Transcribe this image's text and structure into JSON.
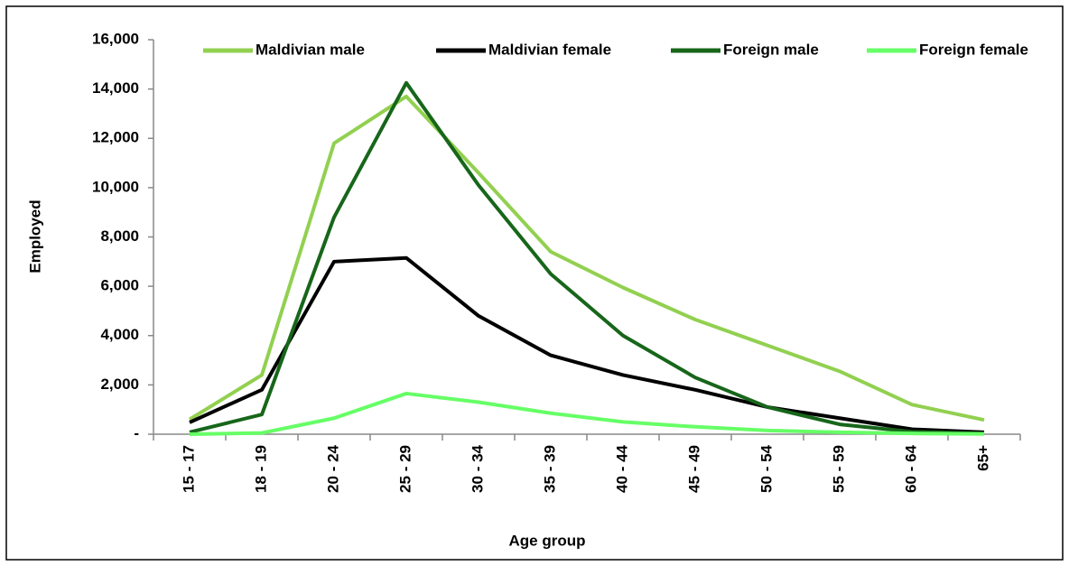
{
  "chart_data": {
    "type": "line",
    "x_label": "Age group",
    "y_label": "Employed",
    "categories": [
      "15 - 17",
      "18 - 19",
      "20 - 24",
      "25 - 29",
      "30 - 34",
      "35 - 39",
      "40 - 44",
      "45 - 49",
      "50 - 54",
      "55 - 59",
      "60 - 64",
      "65+"
    ],
    "series": [
      {
        "name": "Maldivian male",
        "color": "#92d050",
        "values": [
          600,
          2400,
          11800,
          13700,
          10600,
          7400,
          5950,
          4650,
          3600,
          2550,
          1200,
          580
        ]
      },
      {
        "name": "Maldivian female",
        "color": "#000000",
        "values": [
          480,
          1800,
          7000,
          7150,
          4800,
          3200,
          2400,
          1800,
          1100,
          650,
          200,
          80
        ]
      },
      {
        "name": "Foreign male",
        "color": "#17661a",
        "values": [
          80,
          800,
          8800,
          14250,
          10100,
          6500,
          4000,
          2300,
          1100,
          400,
          100,
          30
        ]
      },
      {
        "name": "Foreign female",
        "color": "#66ff66",
        "values": [
          0,
          50,
          650,
          1650,
          1300,
          850,
          500,
          300,
          150,
          80,
          30,
          10
        ]
      }
    ],
    "ylim": [
      0,
      16000
    ],
    "yticks": [
      {
        "value": 0,
        "label": "-"
      },
      {
        "value": 2000,
        "label": "2,000"
      },
      {
        "value": 4000,
        "label": "4,000"
      },
      {
        "value": 6000,
        "label": "6,000"
      },
      {
        "value": 8000,
        "label": "8,000"
      },
      {
        "value": 10000,
        "label": "10,000"
      },
      {
        "value": 12000,
        "label": "12,000"
      },
      {
        "value": 14000,
        "label": "14,000"
      },
      {
        "value": 16000,
        "label": "16,000"
      }
    ],
    "legend": "top"
  }
}
